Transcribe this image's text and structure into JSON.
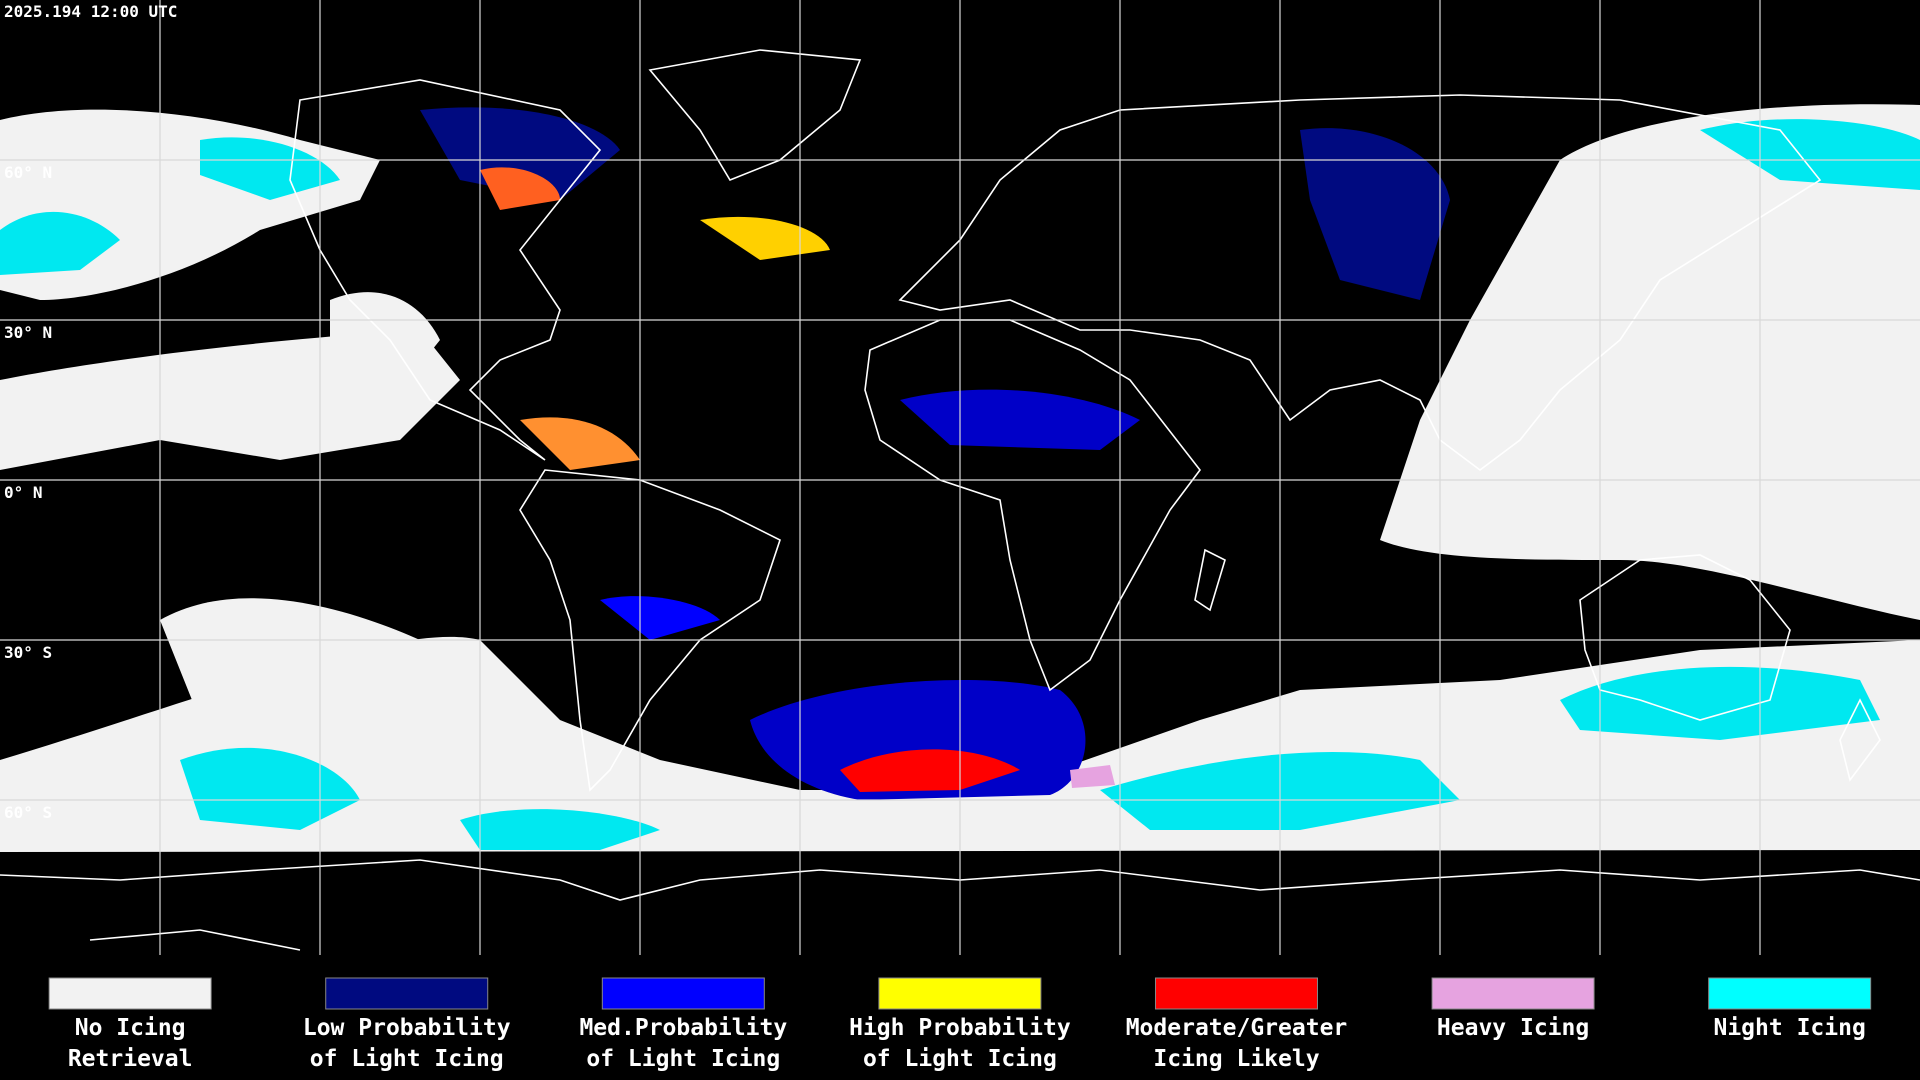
{
  "header": {
    "timestamp": "2025.194 12:00 UTC"
  },
  "grid": {
    "latitude_labels": [
      "60° N",
      "30° N",
      "0° N",
      "30° S",
      "60° S"
    ]
  },
  "legend": {
    "items": [
      {
        "color": "#f2f2f2",
        "lines": [
          "No Icing",
          "Retrieval"
        ]
      },
      {
        "color": "#000a80",
        "lines": [
          "Low Probability",
          "of Light Icing"
        ]
      },
      {
        "color": "#0000ff",
        "lines": [
          "Med.Probability",
          "of Light Icing"
        ]
      },
      {
        "color": "#ffff00",
        "lines": [
          "High Probability",
          "of Light Icing"
        ]
      },
      {
        "color": "#ff0000",
        "lines": [
          "Moderate/Greater",
          "Icing Likely"
        ]
      },
      {
        "color": "#e6a3e0",
        "lines": [
          "Heavy Icing"
        ]
      },
      {
        "color": "#00ffff",
        "lines": [
          "Night Icing"
        ]
      }
    ]
  }
}
